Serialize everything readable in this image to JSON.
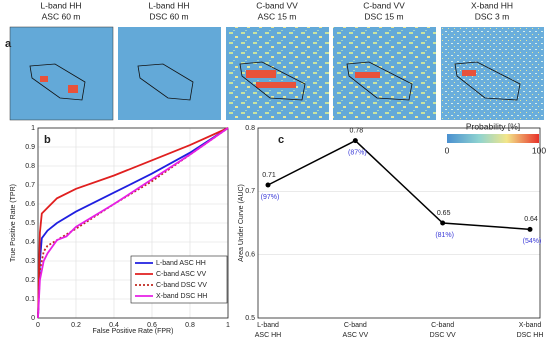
{
  "panel_labels": [
    "a",
    "b",
    "c"
  ],
  "maps": [
    {
      "title": [
        "L-band HH",
        "ASC 60 m"
      ]
    },
    {
      "title": [
        "L-band HH",
        "DSC 60 m"
      ]
    },
    {
      "title": [
        "C-band VV",
        "ASC 15 m"
      ]
    },
    {
      "title": [
        "C-band VV",
        "DSC 15 m"
      ]
    },
    {
      "title": [
        "X-band HH",
        "DSC 3 m"
      ]
    }
  ],
  "colorbar": {
    "label": "Probability [%]",
    "ticks": [
      0,
      100
    ],
    "range": [
      0,
      100
    ]
  },
  "chart_data": [
    {
      "type": "line",
      "x_label": "False Positive Rate (FPR)",
      "y_label": "True Positive Rate (TPR)",
      "xlim": [
        0,
        1
      ],
      "ylim": [
        0,
        1
      ],
      "xticks": [
        0,
        0.2,
        0.4,
        0.6,
        0.8,
        1
      ],
      "yticks": [
        0,
        0.1,
        0.2,
        0.3,
        0.4,
        0.5,
        0.6,
        0.7,
        0.8,
        0.9,
        1
      ],
      "grid": true,
      "legend": "lower right",
      "series": [
        {
          "name": "L-band ASC HH",
          "color": "#1f1fe0",
          "style": "solid",
          "x": [
            0,
            0.01,
            0.02,
            0.05,
            0.1,
            0.2,
            0.4,
            0.6,
            0.8,
            1
          ],
          "values": [
            0,
            0.3,
            0.42,
            0.46,
            0.5,
            0.56,
            0.66,
            0.76,
            0.87,
            1
          ]
        },
        {
          "name": "C-band ASC VV",
          "color": "#e01f1f",
          "style": "solid",
          "x": [
            0,
            0.01,
            0.02,
            0.05,
            0.1,
            0.2,
            0.4,
            0.6,
            0.8,
            1
          ],
          "values": [
            0,
            0.45,
            0.55,
            0.58,
            0.63,
            0.68,
            0.75,
            0.83,
            0.91,
            1
          ]
        },
        {
          "name": "C-band DSC VV",
          "color": "#c0281e",
          "style": "dotted",
          "x": [
            0,
            0.01,
            0.03,
            0.05,
            0.1,
            0.2,
            0.4,
            0.6,
            0.8,
            1
          ],
          "values": [
            0,
            0.25,
            0.35,
            0.38,
            0.41,
            0.47,
            0.6,
            0.72,
            0.86,
            1
          ]
        },
        {
          "name": "X-band DSC HH",
          "color": "#e61fe6",
          "style": "solid",
          "x": [
            0,
            0.01,
            0.03,
            0.05,
            0.1,
            0.15,
            0.2,
            0.4,
            0.6,
            0.8,
            1
          ],
          "values": [
            0,
            0.2,
            0.3,
            0.34,
            0.41,
            0.43,
            0.48,
            0.6,
            0.73,
            0.86,
            1
          ]
        }
      ]
    },
    {
      "type": "line",
      "y_label": "Area Under Curve (AUC)",
      "categories": [
        [
          "L-band",
          "ASC HH"
        ],
        [
          "C-band",
          "ASC VV"
        ],
        [
          "C-band",
          "DSC VV"
        ],
        [
          "X-band",
          "DSC HH"
        ]
      ],
      "values": [
        0.71,
        0.78,
        0.65,
        0.64
      ],
      "color": "#000000",
      "annotations": [
        "(97%)",
        "(87%)",
        "(81%)",
        "(54%)"
      ],
      "annotation_color": "#3a3ad8",
      "ylim": [
        0.5,
        0.8
      ],
      "yticks": [
        0.5,
        0.6,
        0.7,
        0.8
      ],
      "grid": true
    }
  ]
}
